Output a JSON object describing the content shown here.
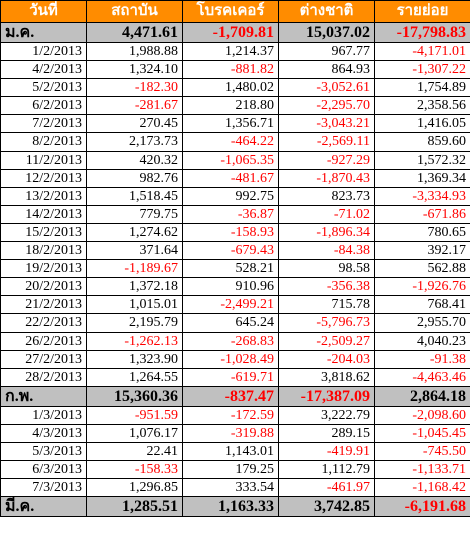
{
  "headers": [
    "วันที่",
    "สถาบัน",
    "โบรคเคอร์",
    "ต่างชาติ",
    "รายย่อย"
  ],
  "rows": [
    {
      "summary": true,
      "cells": [
        "ม.ค.",
        "4,471.61",
        "-1,709.81",
        "15,037.02",
        "-17,798.83"
      ]
    },
    {
      "summary": false,
      "cells": [
        "1/2/2013",
        "1,988.88",
        "1,214.37",
        "967.77",
        "-4,171.01"
      ]
    },
    {
      "summary": false,
      "cells": [
        "4/2/2013",
        "1,324.10",
        "-881.82",
        "864.93",
        "-1,307.22"
      ]
    },
    {
      "summary": false,
      "cells": [
        "5/2/2013",
        "-182.30",
        "1,480.02",
        "-3,052.61",
        "1,754.89"
      ]
    },
    {
      "summary": false,
      "cells": [
        "6/2/2013",
        "-281.67",
        "218.80",
        "-2,295.70",
        "2,358.56"
      ]
    },
    {
      "summary": false,
      "cells": [
        "7/2/2013",
        "270.45",
        "1,356.71",
        "-3,043.21",
        "1,416.05"
      ]
    },
    {
      "summary": false,
      "cells": [
        "8/2/2013",
        "2,173.73",
        "-464.22",
        "-2,569.11",
        "859.60"
      ]
    },
    {
      "summary": false,
      "cells": [
        "11/2/2013",
        "420.32",
        "-1,065.35",
        "-927.29",
        "1,572.32"
      ]
    },
    {
      "summary": false,
      "cells": [
        "12/2/2013",
        "982.76",
        "-481.67",
        "-1,870.43",
        "1,369.34"
      ]
    },
    {
      "summary": false,
      "cells": [
        "13/2/2013",
        "1,518.45",
        "992.75",
        "823.73",
        "-3,334.93"
      ]
    },
    {
      "summary": false,
      "cells": [
        "14/2/2013",
        "779.75",
        "-36.87",
        "-71.02",
        "-671.86"
      ]
    },
    {
      "summary": false,
      "cells": [
        "15/2/2013",
        "1,274.62",
        "-158.93",
        "-1,896.34",
        "780.65"
      ]
    },
    {
      "summary": false,
      "cells": [
        "18/2/2013",
        "371.64",
        "-679.43",
        "-84.38",
        "392.17"
      ]
    },
    {
      "summary": false,
      "cells": [
        "19/2/2013",
        "-1,189.67",
        "528.21",
        "98.58",
        "562.88"
      ]
    },
    {
      "summary": false,
      "cells": [
        "20/2/2013",
        "1,372.18",
        "910.96",
        "-356.38",
        "-1,926.76"
      ]
    },
    {
      "summary": false,
      "cells": [
        "21/2/2013",
        "1,015.01",
        "-2,499.21",
        "715.78",
        "768.41"
      ]
    },
    {
      "summary": false,
      "cells": [
        "22/2/2013",
        "2,195.79",
        "645.24",
        "-5,796.73",
        "2,955.70"
      ]
    },
    {
      "summary": false,
      "cells": [
        "26/2/2013",
        "-1,262.13",
        "-268.83",
        "-2,509.27",
        "4,040.23"
      ]
    },
    {
      "summary": false,
      "cells": [
        "27/2/2013",
        "1,323.90",
        "-1,028.49",
        "-204.03",
        "-91.38"
      ]
    },
    {
      "summary": false,
      "cells": [
        "28/2/2013",
        "1,264.55",
        "-619.71",
        "3,818.62",
        "-4,463.46"
      ]
    },
    {
      "summary": true,
      "cells": [
        "ก.พ.",
        "15,360.36",
        "-837.47",
        "-17,387.09",
        "2,864.18"
      ]
    },
    {
      "summary": false,
      "cells": [
        "1/3/2013",
        "-951.59",
        "-172.59",
        "3,222.79",
        "-2,098.60"
      ]
    },
    {
      "summary": false,
      "cells": [
        "4/3/2013",
        "1,076.17",
        "-319.88",
        "289.15",
        "-1,045.45"
      ]
    },
    {
      "summary": false,
      "cells": [
        "5/3/2013",
        "22.41",
        "1,143.01",
        "-419.91",
        "-745.50"
      ]
    },
    {
      "summary": false,
      "cells": [
        "6/3/2013",
        "-158.33",
        "179.25",
        "1,112.79",
        "-1,133.71"
      ]
    },
    {
      "summary": false,
      "cells": [
        "7/3/2013",
        "1,296.85",
        "333.54",
        "-461.97",
        "-1,168.42"
      ]
    },
    {
      "summary": true,
      "cells": [
        "มี.ค.",
        "1,285.51",
        "1,163.33",
        "3,742.85",
        "-6,191.68"
      ]
    }
  ],
  "colors": {
    "header_bg": "#ff8c00",
    "header_text": "#ffffff",
    "summary_bg": "#c0c0c0",
    "negative": "#ff0000",
    "positive": "#000000"
  }
}
